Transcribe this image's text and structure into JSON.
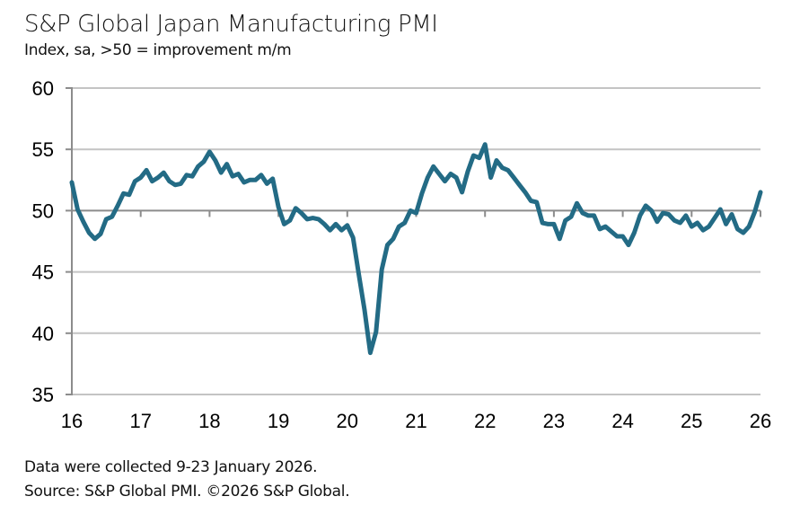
{
  "chart_data": {
    "type": "line",
    "title": "S&P Global Japan Manufacturing PMI",
    "subtitle": "Index, sa, >50 = improvement m/m",
    "xlabel": "",
    "ylabel": "",
    "ylim": [
      35,
      60
    ],
    "yticks": [
      35,
      40,
      45,
      50,
      55,
      60
    ],
    "ytick_labels": [
      "35",
      "40",
      "45",
      "50",
      "55",
      "60"
    ],
    "xlim": [
      2016,
      2026
    ],
    "xticks": [
      2016,
      2017,
      2018,
      2019,
      2020,
      2021,
      2022,
      2023,
      2024,
      2025,
      2026
    ],
    "xtick_labels": [
      "16",
      "17",
      "18",
      "19",
      "20",
      "21",
      "22",
      "23",
      "24",
      "25",
      "26"
    ],
    "grid": "horizontal",
    "reference_line": 50,
    "legend": "none",
    "series": [
      {
        "name": "Japan Manufacturing PMI",
        "color": "#236B85",
        "start": "2016-01",
        "frequency": "monthly",
        "values": [
          52.3,
          50.1,
          49.1,
          48.2,
          47.7,
          48.1,
          49.3,
          49.5,
          50.4,
          51.4,
          51.3,
          52.4,
          52.7,
          53.3,
          52.4,
          52.7,
          53.1,
          52.4,
          52.1,
          52.2,
          52.9,
          52.8,
          53.6,
          54.0,
          54.8,
          54.1,
          53.1,
          53.8,
          52.8,
          53.0,
          52.3,
          52.5,
          52.5,
          52.9,
          52.2,
          52.6,
          50.3,
          48.9,
          49.2,
          50.2,
          49.8,
          49.3,
          49.4,
          49.3,
          48.9,
          48.4,
          48.9,
          48.4,
          48.8,
          47.8,
          44.8,
          41.9,
          38.4,
          40.1,
          45.2,
          47.2,
          47.7,
          48.7,
          49.0,
          50.0,
          49.8,
          51.4,
          52.7,
          53.6,
          53.0,
          52.4,
          53.0,
          52.7,
          51.5,
          53.2,
          54.5,
          54.3,
          55.4,
          52.7,
          54.1,
          53.5,
          53.3,
          52.7,
          52.1,
          51.5,
          50.8,
          50.7,
          49.0,
          48.9,
          48.9,
          47.7,
          49.2,
          49.5,
          50.6,
          49.8,
          49.6,
          49.6,
          48.5,
          48.7,
          48.3,
          47.9,
          47.9,
          47.2,
          48.2,
          49.6,
          50.4,
          50.0,
          49.1,
          49.8,
          49.7,
          49.2,
          49.0,
          49.6,
          48.7,
          49.0,
          48.4,
          48.7,
          49.4,
          50.1,
          48.9,
          49.7,
          48.5,
          48.2,
          48.7,
          49.9,
          51.5
        ]
      }
    ]
  },
  "footer": {
    "collection_note": "Data were collected 9-23 January 2026.",
    "source": "Source: S&P Global PMI. ©2026 S&P Global."
  }
}
